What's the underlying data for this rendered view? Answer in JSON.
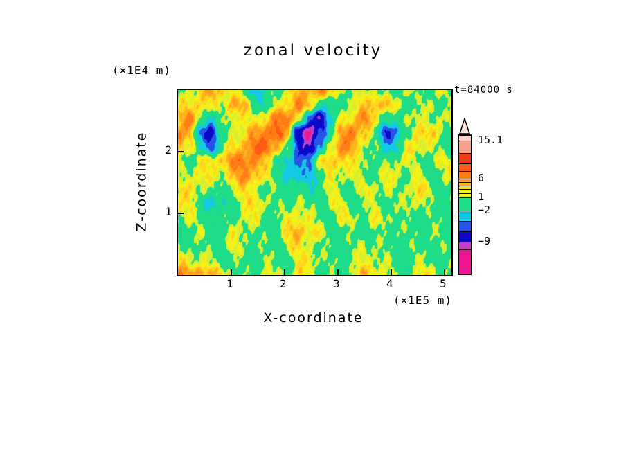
{
  "page": {
    "background": "#ffffff"
  },
  "chart_data": {
    "type": "heatmap",
    "title": "zonal velocity",
    "xlabel": "X-coordinate",
    "x_unit": "(×1E5 m)",
    "ylabel": "Z-coordinate",
    "y_unit": "(×1E4 m)",
    "annotation": "t=84000 s",
    "x_ticks": [
      "1",
      "2",
      "3",
      "4",
      "5"
    ],
    "x_tick_values": [
      1,
      2,
      3,
      4,
      5
    ],
    "x_range": [
      0,
      5.13
    ],
    "y_ticks": [
      "1",
      "2"
    ],
    "y_tick_values": [
      1,
      2
    ],
    "y_range": [
      0,
      3.0
    ],
    "levels": [
      {
        "upto": -11,
        "color": "#EE1690"
      },
      {
        "upto": -9,
        "color": "#C23CC8"
      },
      {
        "upto": -6,
        "color": "#0A0AC8"
      },
      {
        "upto": -4,
        "color": "#2953E8"
      },
      {
        "upto": -2,
        "color": "#14C8E6"
      },
      {
        "upto": 1,
        "color": "#1EDC87"
      },
      {
        "upto": 2,
        "color": "#D8EE30"
      },
      {
        "upto": 3,
        "color": "#F2F219"
      },
      {
        "upto": 4,
        "color": "#FFD81E"
      },
      {
        "upto": 5,
        "color": "#FFB31C"
      },
      {
        "upto": 6,
        "color": "#FF9C1A"
      },
      {
        "upto": 7.5,
        "color": "#FF7D16"
      },
      {
        "upto": 9,
        "color": "#FF5A12"
      },
      {
        "upto": 11,
        "color": "#F23C14"
      },
      {
        "upto": 15.1,
        "color": "#F8A088"
      },
      {
        "upto": 999,
        "color": "#FBD0C4"
      }
    ],
    "colorbar": {
      "labels": [
        "15.1",
        "6",
        "1",
        "−2",
        "−9"
      ],
      "arrow_color": "#FCE4DC",
      "segments_bottom_to_top": [
        {
          "color": "#EE1690",
          "h": 36
        },
        {
          "color": "#C23CC8",
          "h": 11,
          "label": "−9"
        },
        {
          "color": "#0A0AC8",
          "h": 15
        },
        {
          "color": "#2953E8",
          "h": 15
        },
        {
          "color": "#14C8E6",
          "h": 15,
          "label": "−2"
        },
        {
          "color": "#1EDC87",
          "h": 19,
          "label": "1"
        },
        {
          "color": "#D8EE30",
          "h": 6
        },
        {
          "color": "#F2F219",
          "h": 6
        },
        {
          "color": "#FFD81E",
          "h": 5
        },
        {
          "color": "#FFB31C",
          "h": 5
        },
        {
          "color": "#FF9C1A",
          "h": 5,
          "label": "6"
        },
        {
          "color": "#FF7D16",
          "h": 11
        },
        {
          "color": "#FF5A12",
          "h": 11
        },
        {
          "color": "#F23C14",
          "h": 15
        },
        {
          "color": "#F8A088",
          "h": 18,
          "label": "15.1"
        },
        {
          "color": "#FBD0C4",
          "h": 8
        }
      ]
    },
    "grid": {
      "nx": 26,
      "nz": 14,
      "values": [
        [
          6,
          5,
          6,
          4,
          3,
          1,
          0,
          0,
          2,
          1,
          0,
          3,
          2,
          0,
          0,
          0,
          2,
          4,
          3,
          2,
          0,
          0,
          2,
          3,
          1,
          0
        ],
        [
          3,
          2,
          2,
          1,
          0,
          0,
          0,
          0,
          1,
          0,
          0,
          2,
          3,
          1,
          0,
          0,
          1,
          2,
          2,
          1,
          0,
          0,
          1,
          1,
          0,
          0
        ],
        [
          0,
          1,
          0,
          0,
          0,
          2,
          1,
          0,
          0,
          0,
          2,
          3,
          2,
          0,
          0,
          0,
          0,
          2,
          1,
          0,
          0,
          0,
          0,
          0,
          0,
          0
        ],
        [
          0,
          0,
          1,
          0,
          0,
          2,
          2,
          0,
          0,
          0,
          3,
          5,
          3,
          2,
          0,
          0,
          0,
          0,
          0,
          0,
          1,
          0,
          0,
          1,
          0,
          0
        ],
        [
          2,
          2,
          0,
          0,
          -1,
          0,
          2,
          2,
          0,
          0,
          2,
          3,
          2,
          0,
          0,
          2,
          2,
          0,
          2,
          2,
          0,
          0,
          0,
          0,
          0,
          0
        ],
        [
          3,
          2,
          0,
          -3,
          -2,
          0,
          2,
          3,
          2,
          0,
          0,
          2,
          0,
          0,
          2,
          2,
          0,
          0,
          2,
          0,
          0,
          2,
          2,
          0,
          0,
          0
        ],
        [
          2,
          3,
          2,
          0,
          0,
          2,
          3,
          2,
          0,
          0,
          0,
          0,
          -2,
          0,
          2,
          0,
          0,
          2,
          2,
          2,
          0,
          2,
          3,
          2,
          0,
          0
        ],
        [
          0,
          2,
          3,
          2,
          2,
          4,
          6,
          5,
          2,
          0,
          -2,
          -4,
          -3,
          0,
          2,
          2,
          2,
          0,
          0,
          2,
          2,
          0,
          2,
          0,
          0,
          2
        ],
        [
          2,
          0,
          2,
          3,
          4,
          6,
          7,
          6,
          3,
          0,
          -3,
          -5,
          -3,
          2,
          4,
          4,
          2,
          2,
          0,
          0,
          2,
          2,
          0,
          0,
          2,
          2
        ],
        [
          5,
          3,
          -2,
          -5,
          0,
          3,
          5,
          7,
          8,
          5,
          0,
          -6,
          -9,
          -4,
          3,
          6,
          5,
          2,
          0,
          -3,
          -2,
          2,
          3,
          2,
          0,
          0
        ],
        [
          7,
          4,
          -5,
          -6,
          -2,
          2,
          3,
          5,
          7,
          8,
          4,
          -8,
          -12,
          -6,
          0,
          5,
          7,
          4,
          0,
          -6,
          -4,
          0,
          4,
          3,
          2,
          0
        ],
        [
          4,
          6,
          2,
          -3,
          0,
          3,
          2,
          2,
          4,
          6,
          7,
          3,
          -6,
          -8,
          -2,
          2,
          4,
          6,
          3,
          0,
          -2,
          2,
          2,
          0,
          2,
          2
        ],
        [
          2,
          3,
          4,
          2,
          2,
          5,
          4,
          0,
          -2,
          2,
          4,
          6,
          4,
          0,
          -3,
          0,
          2,
          3,
          5,
          4,
          2,
          0,
          0,
          2,
          0,
          0
        ],
        [
          0,
          2,
          3,
          5,
          4,
          2,
          0,
          -3,
          -2,
          0,
          2,
          4,
          5,
          6,
          3,
          2,
          0,
          2,
          2,
          0,
          0,
          2,
          0,
          0,
          2,
          0
        ]
      ]
    }
  }
}
